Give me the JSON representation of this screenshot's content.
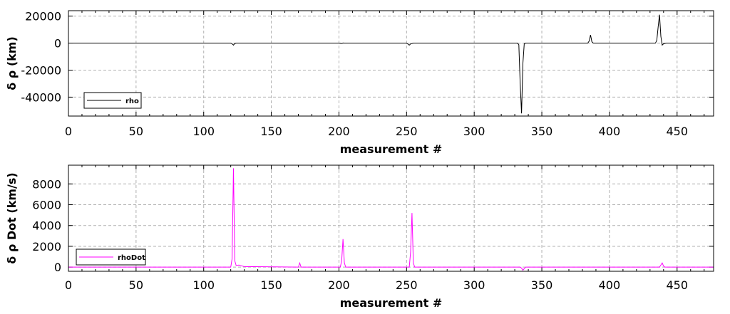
{
  "chart_data": [
    {
      "type": "line",
      "title": "",
      "xlabel": "measurement #",
      "ylabel": "δ ρ (km)",
      "xlim": [
        0,
        477
      ],
      "ylim": [
        -54000,
        24000
      ],
      "xticks": [
        0,
        50,
        100,
        150,
        200,
        250,
        300,
        350,
        400,
        450
      ],
      "yticks": [
        20000,
        0,
        -20000,
        -40000
      ],
      "grid": true,
      "legend_position": "bottom-left",
      "series": [
        {
          "name": "rho",
          "color": "#000000",
          "x": [
            0,
            120,
            121,
            122,
            123,
            124,
            200,
            202,
            203,
            204,
            250,
            251,
            252,
            253,
            255,
            332,
            333,
            334,
            335,
            336,
            337,
            338,
            384,
            385,
            386,
            387,
            388,
            434,
            435,
            436,
            437,
            438,
            439,
            440,
            442,
            477
          ],
          "y": [
            0,
            0,
            -500,
            -1500,
            -300,
            0,
            0,
            -300,
            100,
            0,
            0,
            -700,
            -1500,
            -600,
            0,
            0,
            -1200,
            -30000,
            -52000,
            -15000,
            -500,
            0,
            0,
            1500,
            6000,
            1000,
            0,
            0,
            2000,
            12000,
            21000,
            5000,
            -1500,
            -500,
            0,
            0
          ]
        }
      ]
    },
    {
      "type": "line",
      "title": "",
      "xlabel": "measurement #",
      "ylabel": "δ ρ Dot (km/s)",
      "xlim": [
        0,
        477
      ],
      "ylim": [
        -400,
        9800
      ],
      "xticks": [
        0,
        50,
        100,
        150,
        200,
        250,
        300,
        350,
        400,
        450
      ],
      "yticks": [
        0,
        2000,
        4000,
        6000,
        8000
      ],
      "grid": true,
      "legend_position": "bottom-left",
      "series": [
        {
          "name": "rhoDot",
          "color": "#ff00ff",
          "x": [
            0,
            120,
            121,
            122,
            123,
            124,
            126,
            130,
            170,
            171,
            172,
            201,
            202,
            203,
            204,
            205,
            252,
            253,
            254,
            255,
            256,
            334,
            335,
            336,
            337,
            338,
            437,
            438,
            439,
            440,
            441,
            477
          ],
          "y": [
            0,
            0,
            800,
            9500,
            600,
            150,
            200,
            50,
            0,
            400,
            0,
            0,
            600,
            2700,
            400,
            0,
            0,
            1500,
            5200,
            400,
            0,
            0,
            -100,
            -300,
            -150,
            0,
            0,
            200,
            400,
            100,
            0,
            0
          ]
        }
      ]
    }
  ]
}
